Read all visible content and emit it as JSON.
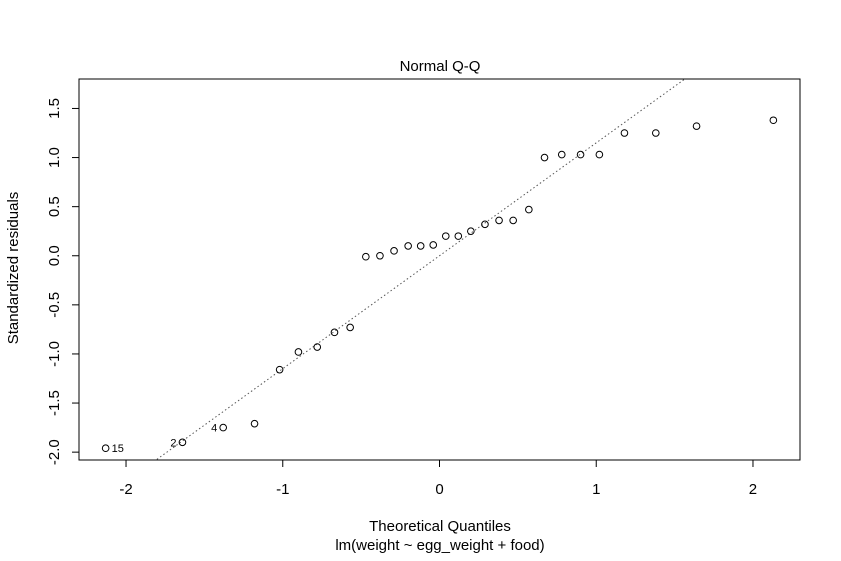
{
  "chart_data": {
    "type": "scatter",
    "title": "Normal Q-Q",
    "xlabel": "Theoretical Quantiles",
    "subtitle": "lm(weight ~ egg_weight + food)",
    "ylabel": "Standardized residuals",
    "xlim": [
      -2.3,
      2.3
    ],
    "ylim": [
      -2.08,
      1.8
    ],
    "x_ticks": [
      -2,
      -1,
      0,
      1,
      2
    ],
    "x_tick_labels": [
      "-2",
      "-1",
      "0",
      "1",
      "2"
    ],
    "y_ticks": [
      -2.0,
      -1.5,
      -1.0,
      -0.5,
      0.0,
      0.5,
      1.0,
      1.5
    ],
    "y_tick_labels": [
      "-2.0",
      "-1.5",
      "-1.0",
      "-0.5",
      "0.0",
      "0.5",
      "1.0",
      "1.5"
    ],
    "grid": false,
    "series": [
      {
        "points": [
          {
            "x": -2.13,
            "y": -1.96,
            "label": "15"
          },
          {
            "x": -1.64,
            "y": -1.9,
            "label": "2"
          },
          {
            "x": -1.38,
            "y": -1.75,
            "label": "4"
          },
          {
            "x": -1.18,
            "y": -1.71
          },
          {
            "x": -1.02,
            "y": -1.16
          },
          {
            "x": -0.9,
            "y": -0.98
          },
          {
            "x": -0.78,
            "y": -0.93
          },
          {
            "x": -0.67,
            "y": -0.78
          },
          {
            "x": -0.57,
            "y": -0.73
          },
          {
            "x": -0.47,
            "y": -0.01
          },
          {
            "x": -0.38,
            "y": 0.0
          },
          {
            "x": -0.29,
            "y": 0.05
          },
          {
            "x": -0.2,
            "y": 0.1
          },
          {
            "x": -0.12,
            "y": 0.1
          },
          {
            "x": -0.04,
            "y": 0.11
          },
          {
            "x": 0.04,
            "y": 0.2
          },
          {
            "x": 0.12,
            "y": 0.2
          },
          {
            "x": 0.2,
            "y": 0.25
          },
          {
            "x": 0.29,
            "y": 0.32
          },
          {
            "x": 0.38,
            "y": 0.36
          },
          {
            "x": 0.47,
            "y": 0.36
          },
          {
            "x": 0.57,
            "y": 0.47
          },
          {
            "x": 0.67,
            "y": 1.0
          },
          {
            "x": 0.78,
            "y": 1.03
          },
          {
            "x": 0.9,
            "y": 1.03
          },
          {
            "x": 1.02,
            "y": 1.03
          },
          {
            "x": 1.18,
            "y": 1.25
          },
          {
            "x": 1.38,
            "y": 1.25
          },
          {
            "x": 1.64,
            "y": 1.32
          },
          {
            "x": 2.13,
            "y": 1.38
          }
        ]
      }
    ],
    "reference_line": {
      "style": "dotted",
      "intercept": 0.0,
      "slope": 1.15
    }
  }
}
